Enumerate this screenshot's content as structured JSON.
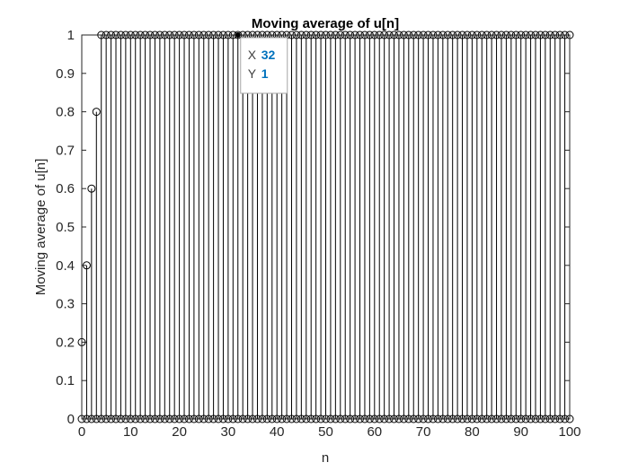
{
  "chart_data": {
    "type": "scatter",
    "style": "stem",
    "title": "Moving average of u[n]",
    "xlabel": "n",
    "ylabel": "Moving average of u[n]",
    "xlim": [
      0,
      100
    ],
    "ylim": [
      0,
      1
    ],
    "x_ticks": [
      "0",
      "10",
      "20",
      "30",
      "40",
      "50",
      "60",
      "70",
      "80",
      "90",
      "100"
    ],
    "y_ticks": [
      "0",
      "0.1",
      "0.2",
      "0.3",
      "0.4",
      "0.5",
      "0.6",
      "0.7",
      "0.8",
      "0.9",
      "1"
    ],
    "grid": false,
    "series": [
      {
        "x": [
          0,
          1,
          2,
          3,
          4,
          5,
          6,
          7,
          8,
          9,
          10,
          11,
          12,
          13,
          14,
          15,
          16,
          17,
          18,
          19,
          20,
          21,
          22,
          23,
          24,
          25,
          26,
          27,
          28,
          29,
          30,
          31,
          32,
          33,
          34,
          35,
          36,
          37,
          38,
          39,
          40,
          41,
          42,
          43,
          44,
          45,
          46,
          47,
          48,
          49,
          50,
          51,
          52,
          53,
          54,
          55,
          56,
          57,
          58,
          59,
          60,
          61,
          62,
          63,
          64,
          65,
          66,
          67,
          68,
          69,
          70,
          71,
          72,
          73,
          74,
          75,
          76,
          77,
          78,
          79,
          80,
          81,
          82,
          83,
          84,
          85,
          86,
          87,
          88,
          89,
          90,
          91,
          92,
          93,
          94,
          95,
          96,
          97,
          98,
          99,
          100
        ],
        "y": [
          0.2,
          0.4,
          0.6,
          0.8,
          1,
          1,
          1,
          1,
          1,
          1,
          1,
          1,
          1,
          1,
          1,
          1,
          1,
          1,
          1,
          1,
          1,
          1,
          1,
          1,
          1,
          1,
          1,
          1,
          1,
          1,
          1,
          1,
          1,
          1,
          1,
          1,
          1,
          1,
          1,
          1,
          1,
          1,
          1,
          1,
          1,
          1,
          1,
          1,
          1,
          1,
          1,
          1,
          1,
          1,
          1,
          1,
          1,
          1,
          1,
          1,
          1,
          1,
          1,
          1,
          1,
          1,
          1,
          1,
          1,
          1,
          1,
          1,
          1,
          1,
          1,
          1,
          1,
          1,
          1,
          1,
          1,
          1,
          1,
          1,
          1,
          1,
          1,
          1,
          1,
          1,
          1,
          1,
          1,
          1,
          1,
          1,
          1,
          1,
          1,
          1,
          1
        ]
      },
      {
        "x": [
          0,
          1,
          2,
          3,
          4,
          5,
          6,
          7,
          8,
          9,
          10,
          11,
          12,
          13,
          14,
          15,
          16,
          17,
          18,
          19,
          20,
          21,
          22,
          23,
          24,
          25,
          26,
          27,
          28,
          29,
          30,
          31,
          32,
          33,
          34,
          35,
          36,
          37,
          38,
          39,
          40,
          41,
          42,
          43,
          44,
          45,
          46,
          47,
          48,
          49,
          50,
          51,
          52,
          53,
          54,
          55,
          56,
          57,
          58,
          59,
          60,
          61,
          62,
          63,
          64,
          65,
          66,
          67,
          68,
          69,
          70,
          71,
          72,
          73,
          74,
          75,
          76,
          77,
          78,
          79,
          80,
          81,
          82,
          83,
          84,
          85,
          86,
          87,
          88,
          89,
          90,
          91,
          92,
          93,
          94,
          95,
          96,
          97,
          98,
          99,
          100
        ],
        "y": [
          0,
          0,
          0,
          0,
          0,
          0,
          0,
          0,
          0,
          0,
          0,
          0,
          0,
          0,
          0,
          0,
          0,
          0,
          0,
          0,
          0,
          0,
          0,
          0,
          0,
          0,
          0,
          0,
          0,
          0,
          0,
          0,
          0,
          0,
          0,
          0,
          0,
          0,
          0,
          0,
          0,
          0,
          0,
          0,
          0,
          0,
          0,
          0,
          0,
          0,
          0,
          0,
          0,
          0,
          0,
          0,
          0,
          0,
          0,
          0,
          0,
          0,
          0,
          0,
          0,
          0,
          0,
          0,
          0,
          0,
          0,
          0,
          0,
          0,
          0,
          0,
          0,
          0,
          0,
          0,
          0,
          0,
          0,
          0,
          0,
          0,
          0,
          0,
          0,
          0,
          0,
          0,
          0,
          0,
          0,
          0,
          0,
          0,
          0,
          0,
          0
        ]
      }
    ],
    "datatip": {
      "x_key": "X",
      "y_key": "Y",
      "x_value": "32",
      "y_value": "1",
      "x": 32,
      "y": 1
    }
  }
}
